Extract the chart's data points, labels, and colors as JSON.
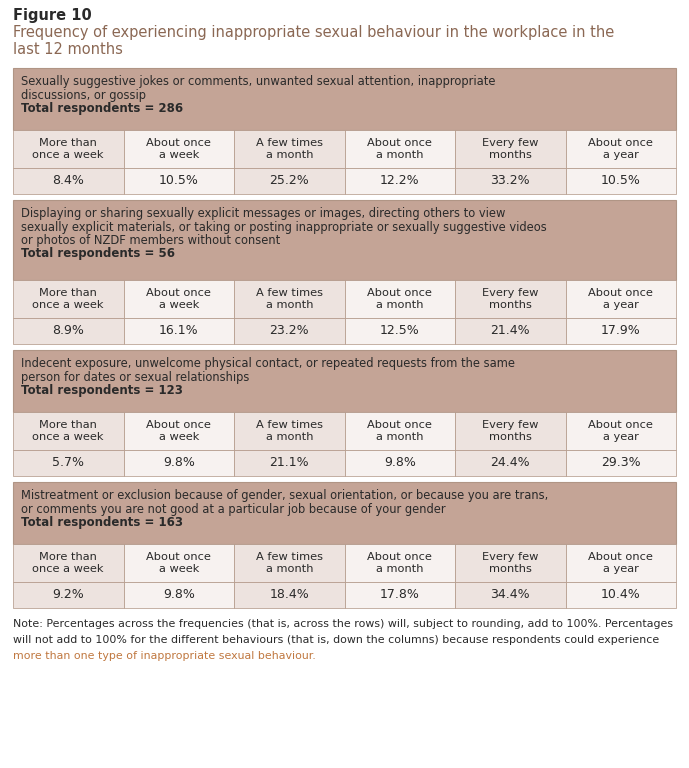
{
  "figure_label": "Figure 10",
  "title_line1": "Frequency of experiencing inappropriate sexual behaviour in the workplace in the",
  "title_line2": "last 12 months",
  "bg_color": "#ffffff",
  "header_bg": "#c4a496",
  "row_bg_odd": "#ede3df",
  "row_bg_even": "#f7f2f0",
  "border_color": "#b09585",
  "text_dark": "#2a2a2a",
  "text_title": "#8b6854",
  "text_note_highlight": "#c07840",
  "sections": [
    {
      "header_lines": [
        "Sexually suggestive jokes or comments, unwanted sexual attention, inappropriate",
        "discussions, or gossip"
      ],
      "total_line": "Total respondents = 286",
      "columns": [
        "More than\nonce a week",
        "About once\na week",
        "A few times\na month",
        "About once\na month",
        "Every few\nmonths",
        "About once\na year"
      ],
      "values": [
        "8.4%",
        "10.5%",
        "25.2%",
        "12.2%",
        "33.2%",
        "10.5%"
      ]
    },
    {
      "header_lines": [
        "Displaying or sharing sexually explicit messages or images, directing others to view",
        "sexually explicit materials, or taking or posting inappropriate or sexually suggestive videos",
        "or photos of NZDF members without consent"
      ],
      "total_line": "Total respondents = 56",
      "columns": [
        "More than\nonce a week",
        "About once\na week",
        "A few times\na month",
        "About once\na month",
        "Every few\nmonths",
        "About once\na year"
      ],
      "values": [
        "8.9%",
        "16.1%",
        "23.2%",
        "12.5%",
        "21.4%",
        "17.9%"
      ]
    },
    {
      "header_lines": [
        "Indecent exposure, unwelcome physical contact, or repeated requests from the same",
        "person for dates or sexual relationships"
      ],
      "total_line": "Total respondents = 123",
      "columns": [
        "More than\nonce a week",
        "About once\na week",
        "A few times\na month",
        "About once\na month",
        "Every few\nmonths",
        "About once\na year"
      ],
      "values": [
        "5.7%",
        "9.8%",
        "21.1%",
        "9.8%",
        "24.4%",
        "29.3%"
      ]
    },
    {
      "header_lines": [
        "Mistreatment or exclusion because of gender, sexual orientation, or because you are trans,",
        "or comments you are not good at a particular job because of your gender"
      ],
      "total_line": "Total respondents = 163",
      "columns": [
        "More than\nonce a week",
        "About once\na week",
        "A few times\na month",
        "About once\na month",
        "Every few\nmonths",
        "About once\na year"
      ],
      "values": [
        "9.2%",
        "9.8%",
        "18.4%",
        "17.8%",
        "34.4%",
        "10.4%"
      ]
    }
  ],
  "note_line1": "Note: Percentages across the frequencies (that is, across the rows) will, subject to rounding, add to 100%. Percentages",
  "note_line2": "will not add to 100% for the different behaviours (that is, down the columns) because respondents could experience",
  "note_line3_normal": "more than one type of inappropriate sexual behaviour.",
  "note_line3_highlight": "more than one type of inappropriate sexual behaviour."
}
